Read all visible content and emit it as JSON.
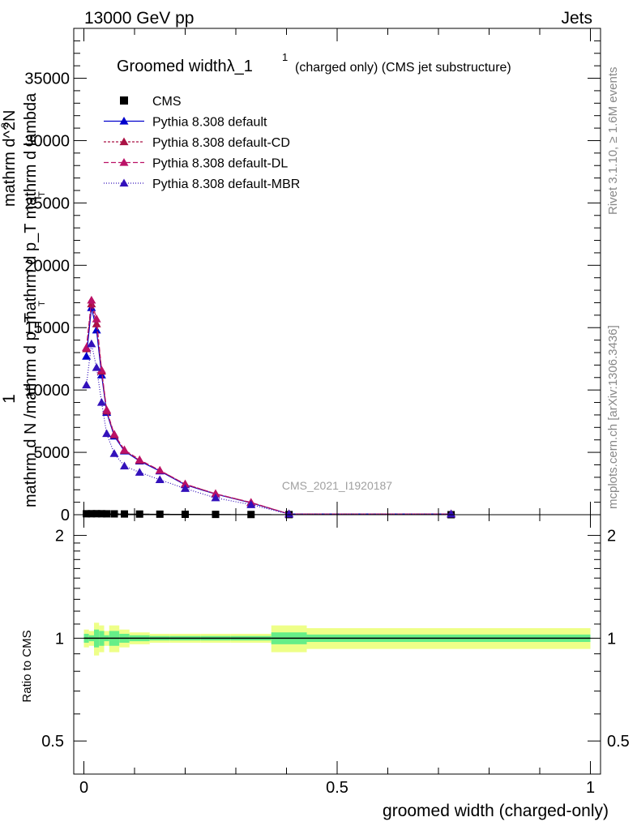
{
  "header": {
    "left": "13000 GeV pp",
    "right": "Jets"
  },
  "side_labels": {
    "rivet": "Rivet 3.1.10, ≥ 1.6M events",
    "mcplots": "mcplots.cern.ch [arXiv:1306.3436]"
  },
  "chart_data": [
    {
      "type": "line",
      "title": "Groomed widthλ_1",
      "title_sup": "1",
      "title_suffix": "(charged only) (CMS jet substructure)",
      "analysis_label": "CMS_2021_I1920187",
      "ylabel_parts": {
        "one": "1",
        "denominator": "mathrm d N /mathrm d p_T",
        "dn": "mathrm d^2N",
        "dpt": "mathrm d p_T mathrm d lambda",
        "t_sub": "T",
        "t_sub2": "T",
        "superscript_2": "2"
      },
      "xlim": [
        -0.02,
        1.02
      ],
      "ylim": [
        0,
        39000
      ],
      "x_ticks": [
        "0",
        "0.5",
        "1"
      ],
      "y_ticks": [
        "0",
        "5000",
        "10000",
        "15000",
        "20000",
        "25000",
        "30000",
        "35000"
      ],
      "y_tick_values": [
        0,
        5000,
        10000,
        15000,
        20000,
        25000,
        30000,
        35000
      ],
      "x_tick_values": [
        0,
        0.5,
        1
      ],
      "legend_position": "top-left",
      "series": [
        {
          "name": "CMS",
          "marker": "square",
          "color": "#000000",
          "dash": "",
          "x": [
            0.005,
            0.015,
            0.025,
            0.035,
            0.045,
            0.06,
            0.08,
            0.11,
            0.15,
            0.2,
            0.26,
            0.33,
            0.405,
            0.725
          ],
          "y": [
            75,
            78,
            80,
            77,
            72,
            66,
            58,
            50,
            42,
            32,
            24,
            16,
            9,
            1
          ],
          "xerr": [
            0.005,
            0.005,
            0.005,
            0.005,
            0.005,
            0.01,
            0.01,
            0.02,
            0.02,
            0.03,
            0.03,
            0.04,
            0.035,
            0.285
          ]
        },
        {
          "name": "Pythia 8.308 default",
          "marker": "triangle",
          "color": "#0000cc",
          "dash": "",
          "x": [
            0.005,
            0.015,
            0.025,
            0.035,
            0.045,
            0.06,
            0.08,
            0.11,
            0.15,
            0.2,
            0.26,
            0.33,
            0.405,
            0.725
          ],
          "y": [
            12700,
            16600,
            14800,
            11200,
            8200,
            6300,
            5100,
            4300,
            3500,
            2400,
            1650,
            950,
            60,
            60
          ]
        },
        {
          "name": "Pythia 8.308 default-CD",
          "marker": "triangle",
          "color": "#aa1144",
          "dash": "3,2",
          "x": [
            0.005,
            0.015,
            0.025,
            0.035,
            0.045,
            0.06,
            0.08,
            0.11,
            0.15,
            0.2,
            0.26,
            0.33,
            0.405,
            0.725
          ],
          "y": [
            13300,
            16900,
            15300,
            11500,
            8300,
            6400,
            5150,
            4350,
            3550,
            2450,
            1680,
            970,
            60,
            60
          ]
        },
        {
          "name": "Pythia 8.308 default-DL",
          "marker": "triangle",
          "color": "#bb1166",
          "dash": "6,3",
          "x": [
            0.005,
            0.015,
            0.025,
            0.035,
            0.045,
            0.06,
            0.08,
            0.11,
            0.15,
            0.2,
            0.26,
            0.33,
            0.405,
            0.725
          ],
          "y": [
            13400,
            17200,
            15700,
            11600,
            8400,
            6450,
            5200,
            4400,
            3550,
            2450,
            1680,
            980,
            60,
            60
          ]
        },
        {
          "name": "Pythia 8.308 default-MBR",
          "marker": "triangle",
          "color": "#3311bb",
          "dash": "1,2",
          "x": [
            0.005,
            0.015,
            0.025,
            0.035,
            0.045,
            0.06,
            0.08,
            0.11,
            0.15,
            0.2,
            0.26,
            0.33,
            0.405,
            0.725
          ],
          "y": [
            10400,
            13700,
            11800,
            9000,
            6500,
            4900,
            3900,
            3400,
            2800,
            2100,
            1350,
            800,
            50,
            50
          ]
        }
      ]
    },
    {
      "type": "line",
      "ylabel": "Ratio to CMS",
      "xlabel": "groomed width (charged-only)",
      "xlim": [
        -0.02,
        1.02
      ],
      "ylim": [
        0.4,
        2.3
      ],
      "y_scale": "log",
      "y_ticks": [
        "0.5",
        "1",
        "2"
      ],
      "y_tick_values": [
        0.5,
        1,
        2
      ],
      "x_ticks": [
        "0",
        "0.5",
        "1"
      ],
      "x_tick_values": [
        0,
        0.5,
        1
      ],
      "reference": 1,
      "band_colors": {
        "inner": "#66ee88",
        "outer": "#eeff88"
      },
      "bands": {
        "x_edges": [
          0.0,
          0.01,
          0.02,
          0.03,
          0.04,
          0.05,
          0.07,
          0.09,
          0.13,
          0.17,
          0.23,
          0.29,
          0.37,
          0.44,
          1.0
        ],
        "inner_half": [
          0.03,
          0.02,
          0.06,
          0.05,
          0.02,
          0.05,
          0.03,
          0.02,
          0.015,
          0.015,
          0.015,
          0.015,
          0.04,
          0.025
        ],
        "outer_half": [
          0.06,
          0.05,
          0.11,
          0.09,
          0.05,
          0.09,
          0.06,
          0.04,
          0.03,
          0.03,
          0.03,
          0.03,
          0.09,
          0.07
        ]
      }
    }
  ]
}
